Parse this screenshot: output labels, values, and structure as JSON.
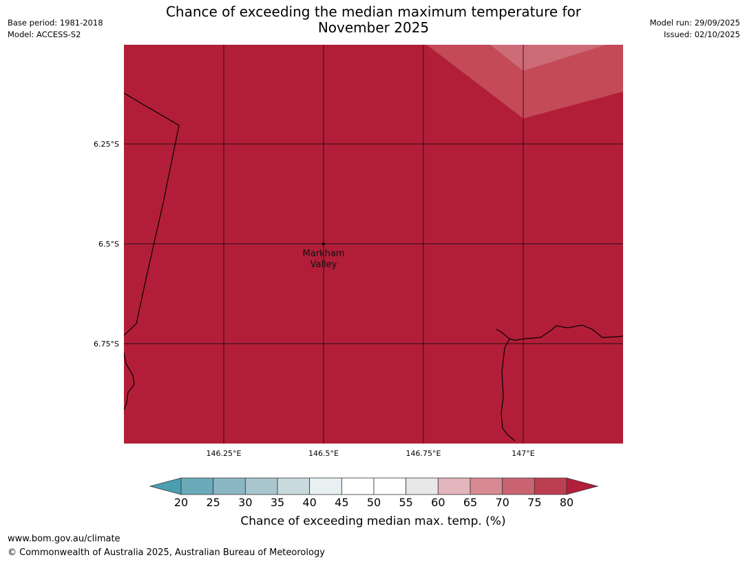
{
  "header": {
    "title_line1": "Chance of exceeding the median maximum temperature for",
    "title_line2": "November 2025",
    "base_period": "Base period: 1981-2018",
    "model": "Model: ACCESS-S2",
    "model_run": "Model run: 29/09/2025",
    "issued": "Issued: 02/10/2025"
  },
  "map": {
    "lon_ticks": [
      "146.25°E",
      "146.5°E",
      "146.75°E",
      "147°E"
    ],
    "lat_ticks": [
      "6.25°S",
      "6.5°S",
      "6.75°S"
    ],
    "place": {
      "line1": "Markham",
      "line2": "Valley"
    },
    "base_fill": "#b21e38",
    "overlay_fill_70": "#c44a58",
    "overlay_fill_65": "#cd6b77"
  },
  "colorbar": {
    "title": "Chance of exceeding median max. temp. (%)",
    "labels": [
      "20",
      "25",
      "30",
      "35",
      "40",
      "45",
      "50",
      "55",
      "60",
      "65",
      "70",
      "75",
      "80"
    ],
    "colors": [
      "#6aaabb",
      "#8bb6c3",
      "#a8c6cc",
      "#c8dadd",
      "#e8f0f2",
      "#ffffff",
      "#ffffff",
      "#e8e8e8",
      "#e2b6bc",
      "#d78a94",
      "#cb6472",
      "#be3e51"
    ],
    "under_color": "#4a9fb2",
    "over_color": "#b21e38"
  },
  "footer": {
    "url": "www.bom.gov.au/climate",
    "copyright": "© Commonwealth of Australia 2025, Australian Bureau of Meteorology"
  }
}
